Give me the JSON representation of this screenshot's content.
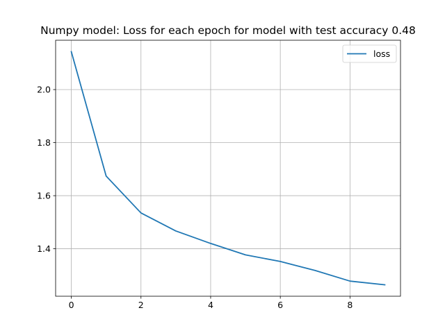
{
  "chart_data": {
    "type": "line",
    "title": "Numpy model: Loss for each epoch for model with test accuracy 0.48",
    "xlabel": "",
    "ylabel": "",
    "x": [
      0,
      1,
      2,
      3,
      4,
      5,
      6,
      7,
      8,
      9
    ],
    "series": [
      {
        "name": "loss",
        "color": "#1f77b4",
        "values": [
          2.143,
          1.674,
          1.535,
          1.467,
          1.42,
          1.377,
          1.352,
          1.318,
          1.278,
          1.264
        ]
      }
    ],
    "xlim": [
      -0.45,
      9.45
    ],
    "ylim": [
      1.221,
      2.186
    ],
    "xticks": [
      0,
      2,
      4,
      6,
      8
    ],
    "yticks": [
      1.4,
      1.6,
      1.8,
      2.0
    ],
    "xtick_labels": [
      "0",
      "2",
      "4",
      "6",
      "8"
    ],
    "ytick_labels": [
      "1.4",
      "1.6",
      "1.8",
      "2.0"
    ],
    "grid": true,
    "legend_position": "upper right"
  }
}
